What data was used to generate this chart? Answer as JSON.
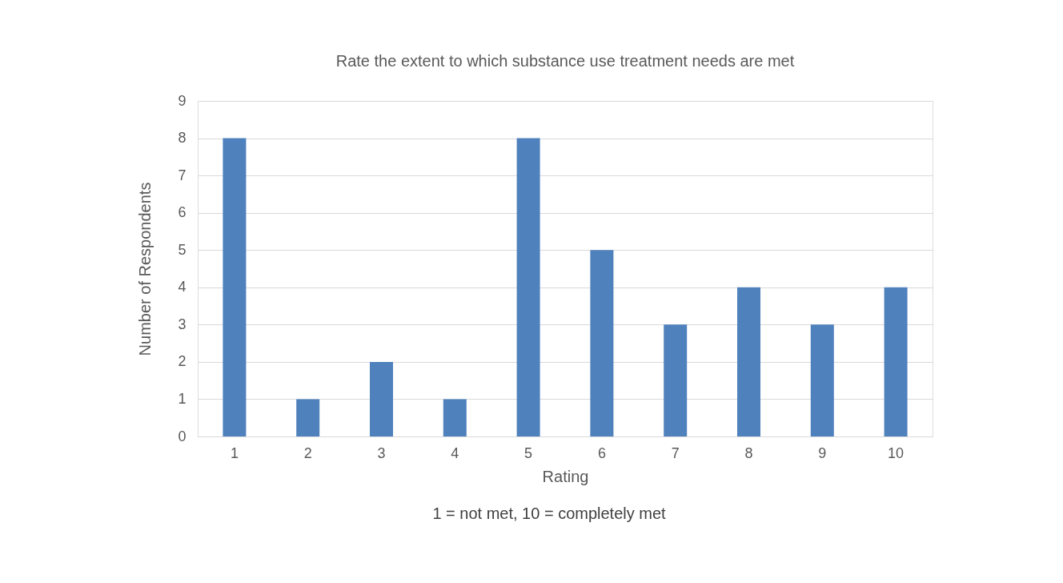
{
  "chart_data": {
    "type": "bar",
    "title": "Rate the extent to which substance use treatment needs are met",
    "xlabel": "Rating",
    "ylabel": "Number of Respondents",
    "annotations": [
      "1 = not met, 10 = completely met"
    ],
    "categories": [
      "1",
      "2",
      "3",
      "4",
      "5",
      "6",
      "7",
      "8",
      "9",
      "10"
    ],
    "values": [
      8,
      1,
      2,
      1,
      8,
      5,
      3,
      4,
      3,
      4
    ],
    "color": "#4f81bd",
    "ylim": [
      0,
      9
    ],
    "yticks": [
      0,
      1,
      2,
      3,
      4,
      5,
      6,
      7,
      8,
      9
    ],
    "grid": "y"
  }
}
